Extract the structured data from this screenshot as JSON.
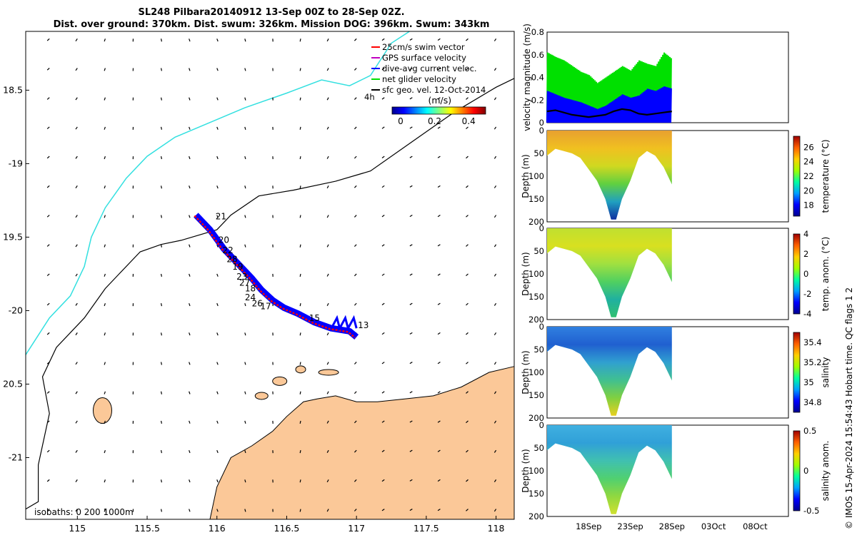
{
  "title_line1": "SL248 Pilbara20140912 13-Sep 00Z to 28-Sep 02Z.",
  "title_line2": "Dist. over ground: 370km. Dist. swum: 326km. Mission DOG: 396km. Swum: 343km",
  "side_info": "© IMOS 15-Apr-2024 15:54:43 Hobart time. QC flags 1  2",
  "colors": {
    "land": "#fbc898",
    "coast_cyan": "#33e0e0",
    "glider_track": "#0000ff",
    "swim_vector": "#ff0000",
    "current": "#3050ff",
    "net": "#00e000"
  },
  "chart_data": [
    {
      "type": "scatter",
      "name": "map",
      "x_ticks": [
        115,
        115.5,
        116,
        116.5,
        117,
        117.5,
        118
      ],
      "x_tick_labels": [
        "115",
        "115.5",
        "116",
        "116.5",
        "117",
        "117.5",
        "118"
      ],
      "y_ticks": [
        -18.5,
        -19,
        -19.5,
        -20,
        -20.5,
        -21
      ],
      "y_tick_labels": [
        "18.5",
        "-19",
        "19.5",
        "-20",
        "20.5",
        "-21"
      ],
      "xlim": [
        114.63,
        118.13
      ],
      "ylim": [
        -21.42,
        -18.1
      ],
      "legend": [
        {
          "label": "25cm/s swim vector",
          "color": "#ff0000"
        },
        {
          "label": "GPS surface velocity",
          "color": "#c000c0"
        },
        {
          "label": "dive-avg current veloc.",
          "color": "#0000ff"
        },
        {
          "label": "net glider velocity",
          "color": "#00e000"
        },
        {
          "label": "sfc geo. vel. 12-Oct-2014",
          "color": "#000000"
        }
      ],
      "legend_position": "top-right",
      "time_note": "4h",
      "colorbar": {
        "label": "(m/s)",
        "ticks": [
          0,
          0.2,
          0.4
        ],
        "tick_labels": [
          "0",
          "0.2",
          "0.4"
        ],
        "range": [
          -0.05,
          0.5
        ]
      },
      "isobath_label": "isobaths: 0   200  1000m",
      "track": [
        [
          115.85,
          -19.35
        ],
        [
          115.95,
          -19.45
        ],
        [
          116.05,
          -19.58
        ],
        [
          116.15,
          -19.68
        ],
        [
          116.25,
          -19.78
        ],
        [
          116.32,
          -19.86
        ],
        [
          116.4,
          -19.93
        ],
        [
          116.48,
          -19.98
        ],
        [
          116.58,
          -20.02
        ],
        [
          116.7,
          -20.08
        ],
        [
          116.82,
          -20.12
        ],
        [
          116.95,
          -20.14
        ],
        [
          117.0,
          -20.18
        ]
      ],
      "day_labels": [
        {
          "day": "21",
          "x": 115.99,
          "y": -19.38
        },
        {
          "day": "20",
          "x": 116.01,
          "y": -19.54
        },
        {
          "day": "22",
          "x": 116.04,
          "y": -19.61
        },
        {
          "day": "28",
          "x": 116.07,
          "y": -19.67
        },
        {
          "day": "19",
          "x": 116.11,
          "y": -19.72
        },
        {
          "day": "23",
          "x": 116.14,
          "y": -19.79
        },
        {
          "day": "27",
          "x": 116.16,
          "y": -19.83
        },
        {
          "day": "18",
          "x": 116.2,
          "y": -19.87
        },
        {
          "day": "24",
          "x": 116.2,
          "y": -19.93
        },
        {
          "day": "26",
          "x": 116.25,
          "y": -19.97
        },
        {
          "day": "17",
          "x": 116.31,
          "y": -19.99
        },
        {
          "day": "15",
          "x": 116.66,
          "y": -20.07
        },
        {
          "day": "13",
          "x": 117.01,
          "y": -20.12
        }
      ]
    },
    {
      "type": "line",
      "name": "velocity",
      "ylabel": "velocity magnitude (m/s)",
      "ylim": [
        0,
        0.8
      ],
      "y_ticks": [
        0,
        0.2,
        0.4,
        0.6,
        0.8
      ],
      "y_tick_labels": [
        "0",
        "0.2",
        "0.4",
        "0.6",
        "0.8"
      ],
      "series": [
        {
          "name": "net glider velocity",
          "color": "#00e000",
          "x": [
            13,
            14,
            15,
            16,
            17,
            18,
            19,
            20,
            21,
            22,
            23,
            24,
            25,
            26,
            27,
            28
          ],
          "values": [
            0.62,
            0.58,
            0.55,
            0.5,
            0.45,
            0.42,
            0.35,
            0.4,
            0.45,
            0.5,
            0.46,
            0.55,
            0.52,
            0.5,
            0.62,
            0.56
          ]
        },
        {
          "name": "dive-avg current veloc.",
          "color": "#0000ff",
          "x": [
            13,
            14,
            15,
            16,
            17,
            18,
            19,
            20,
            21,
            22,
            23,
            24,
            25,
            26,
            27,
            28
          ],
          "values": [
            0.28,
            0.25,
            0.22,
            0.2,
            0.18,
            0.15,
            0.12,
            0.15,
            0.2,
            0.25,
            0.22,
            0.24,
            0.3,
            0.28,
            0.32,
            0.3
          ]
        },
        {
          "name": "sfc geo. vel. 12-Oct-2014",
          "color": "#000000",
          "x": [
            13,
            14,
            15,
            16,
            17,
            18,
            19,
            20,
            21,
            22,
            23,
            24,
            25,
            26,
            27,
            28
          ],
          "values": [
            0.1,
            0.11,
            0.09,
            0.07,
            0.06,
            0.05,
            0.06,
            0.07,
            0.1,
            0.12,
            0.11,
            0.08,
            0.07,
            0.08,
            0.09,
            0.1
          ]
        }
      ]
    },
    {
      "type": "heatmap",
      "name": "temperature",
      "ylabel": "Depth (m)",
      "clabel": "temperature (°C)",
      "ylim": [
        0,
        200
      ],
      "y_ticks": [
        0,
        50,
        100,
        150,
        200
      ],
      "c_ticks": [
        18,
        20,
        22,
        24,
        26
      ],
      "crange": [
        16.5,
        27.5
      ],
      "colors": [
        "#e8a030",
        "#f0c020",
        "#d0d820",
        "#60d040",
        "#20a0c0",
        "#1030a0"
      ]
    },
    {
      "type": "heatmap",
      "name": "temp_anom",
      "ylabel": "Depth (m)",
      "clabel": "temp. anom. (°C)",
      "ylim": [
        0,
        200
      ],
      "y_ticks": [
        0,
        50,
        100,
        150,
        200
      ],
      "c_ticks": [
        -4,
        -2,
        0,
        2,
        4
      ],
      "crange": [
        -4,
        4
      ],
      "colors": [
        "#c0e030",
        "#d8e020",
        "#a0e040",
        "#50d060",
        "#20b0a0",
        "#30c070"
      ]
    },
    {
      "type": "heatmap",
      "name": "salinity",
      "ylabel": "Depth (m)",
      "clabel": "salinity",
      "ylim": [
        0,
        200
      ],
      "y_ticks": [
        0,
        50,
        100,
        150,
        200
      ],
      "c_ticks": [
        34.8,
        35,
        35.2,
        35.4
      ],
      "crange": [
        34.7,
        35.5
      ],
      "colors": [
        "#3080e0",
        "#2060d0",
        "#30a0d0",
        "#40c090",
        "#80d040",
        "#e8d020"
      ]
    },
    {
      "type": "heatmap",
      "name": "salinity_anom",
      "ylabel": "Depth (m)",
      "clabel": "salinity anom.",
      "ylim": [
        0,
        200
      ],
      "y_ticks": [
        0,
        50,
        100,
        150,
        200
      ],
      "c_ticks": [
        -0.5,
        0,
        0.5
      ],
      "crange": [
        -0.5,
        0.5
      ],
      "colors": [
        "#40b0e0",
        "#30a0d8",
        "#40c0b0",
        "#50d070",
        "#90d840",
        "#d0e030"
      ]
    }
  ],
  "time_axis": {
    "ticks": [
      18,
      23,
      28,
      33,
      38
    ],
    "tick_labels": [
      "18Sep",
      "23Sep",
      "28Sep",
      "03Oct",
      "08Oct"
    ],
    "xlim": [
      13,
      42
    ]
  }
}
